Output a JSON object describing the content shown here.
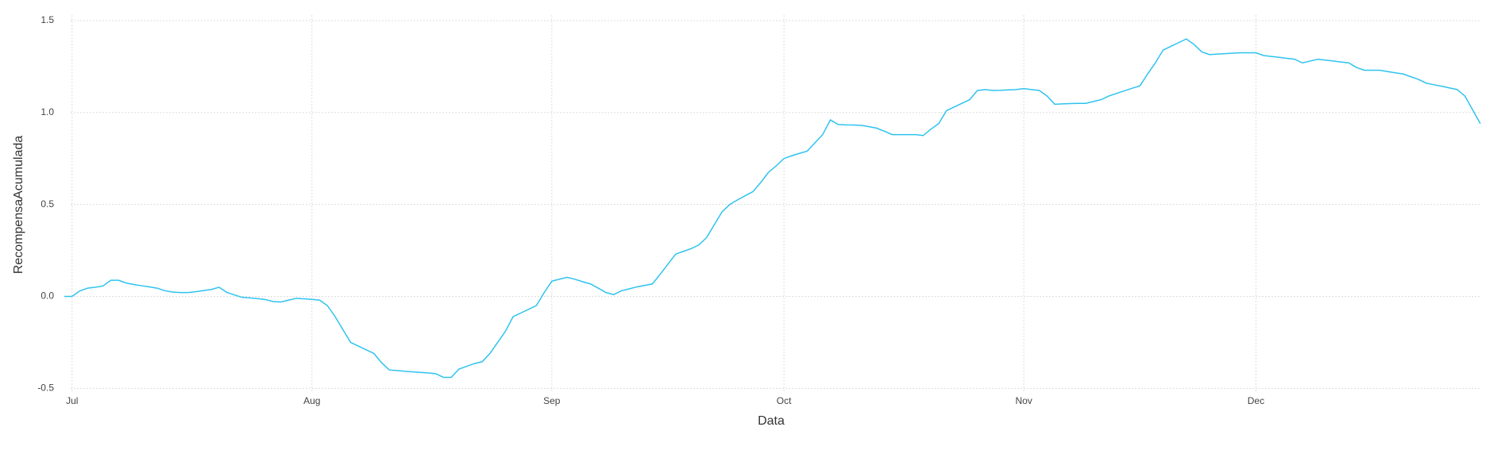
{
  "chart_data": {
    "type": "line",
    "x_label": "Data",
    "y_label": "RecompensaAcumulada",
    "color": "#2ec3ef",
    "grid": true,
    "ylim": [
      -0.52,
      1.53
    ],
    "yticks": [
      -0.5,
      {
        "value": 0,
        "label": "0.0"
      },
      0.5,
      {
        "value": 1,
        "label": "1.0"
      },
      1.5
    ],
    "categories": [
      null,
      "Jul",
      null,
      null,
      null,
      null,
      null,
      null,
      null,
      null,
      null,
      null,
      null,
      null,
      null,
      null,
      null,
      null,
      null,
      null,
      null,
      null,
      null,
      null,
      null,
      null,
      null,
      null,
      null,
      null,
      null,
      null,
      "Aug",
      null,
      null,
      null,
      null,
      null,
      null,
      null,
      null,
      null,
      null,
      null,
      null,
      null,
      null,
      null,
      null,
      null,
      null,
      null,
      null,
      null,
      null,
      null,
      null,
      null,
      null,
      null,
      null,
      null,
      null,
      "Sep",
      null,
      null,
      null,
      null,
      null,
      null,
      null,
      null,
      null,
      null,
      null,
      null,
      null,
      null,
      null,
      null,
      null,
      null,
      null,
      null,
      null,
      null,
      null,
      null,
      null,
      null,
      null,
      null,
      null,
      "Oct",
      null,
      null,
      null,
      null,
      null,
      null,
      null,
      null,
      null,
      null,
      null,
      null,
      null,
      null,
      null,
      null,
      null,
      null,
      null,
      null,
      null,
      null,
      null,
      null,
      null,
      null,
      null,
      null,
      null,
      null,
      "Nov",
      null,
      null,
      null,
      null,
      null,
      null,
      null,
      null,
      null,
      null,
      null,
      null,
      null,
      null,
      null,
      null,
      null,
      null,
      null,
      null,
      null,
      null,
      null,
      null,
      null,
      null,
      null,
      null,
      null,
      "Dec",
      null,
      null,
      null,
      null,
      null,
      null,
      null,
      null,
      null,
      null,
      null,
      null,
      null,
      null,
      null,
      null,
      null,
      null,
      null,
      null,
      null,
      null,
      null,
      null,
      null,
      null,
      null,
      null,
      null
    ],
    "values": [
      0.0,
      0.0,
      0.03,
      0.045,
      0.05,
      0.057,
      0.088,
      0.088,
      0.073,
      0.065,
      0.058,
      0.052,
      0.045,
      0.031,
      0.024,
      0.021,
      0.021,
      0.026,
      0.032,
      0.038,
      0.05,
      0.022,
      0.008,
      -0.005,
      -0.008,
      -0.012,
      -0.017,
      -0.028,
      -0.03,
      -0.02,
      -0.01,
      -0.013,
      -0.016,
      -0.02,
      -0.05,
      -0.11,
      -0.18,
      -0.25,
      -0.27,
      -0.29,
      -0.31,
      -0.36,
      -0.4,
      -0.403,
      -0.407,
      -0.41,
      -0.413,
      -0.416,
      -0.42,
      -0.44,
      -0.44,
      -0.395,
      -0.38,
      -0.365,
      -0.355,
      -0.31,
      -0.25,
      -0.19,
      -0.11,
      -0.09,
      -0.07,
      -0.05,
      0.02,
      0.083,
      0.094,
      0.104,
      0.093,
      0.08,
      0.068,
      0.045,
      0.021,
      0.01,
      0.031,
      0.041,
      0.052,
      0.06,
      0.068,
      0.12,
      0.175,
      0.23,
      0.245,
      0.26,
      0.28,
      0.32,
      0.39,
      0.46,
      0.5,
      0.525,
      0.548,
      0.57,
      0.62,
      0.675,
      0.71,
      0.75,
      0.765,
      0.778,
      0.79,
      0.835,
      0.88,
      0.96,
      0.935,
      0.933,
      0.932,
      0.93,
      0.923,
      0.915,
      0.898,
      0.88,
      0.88,
      0.88,
      0.88,
      0.875,
      0.91,
      0.94,
      1.01,
      1.03,
      1.05,
      1.07,
      1.12,
      1.125,
      1.12,
      1.121,
      1.123,
      1.125,
      1.13,
      1.125,
      1.12,
      1.09,
      1.045,
      1.047,
      1.049,
      1.05,
      1.05,
      1.06,
      1.07,
      1.09,
      1.104,
      1.118,
      1.132,
      1.145,
      1.21,
      1.27,
      1.34,
      1.36,
      1.38,
      1.4,
      1.37,
      1.33,
      1.315,
      1.318,
      1.32,
      1.323,
      1.325,
      1.325,
      1.325,
      1.31,
      1.305,
      1.3,
      1.295,
      1.29,
      1.27,
      1.28,
      1.29,
      1.285,
      1.28,
      1.275,
      1.27,
      1.245,
      1.23,
      1.23,
      1.23,
      1.223,
      1.216,
      1.21,
      1.195,
      1.18,
      1.16,
      1.151,
      1.143,
      1.134,
      1.125,
      1.09,
      1.015,
      0.94
    ]
  }
}
